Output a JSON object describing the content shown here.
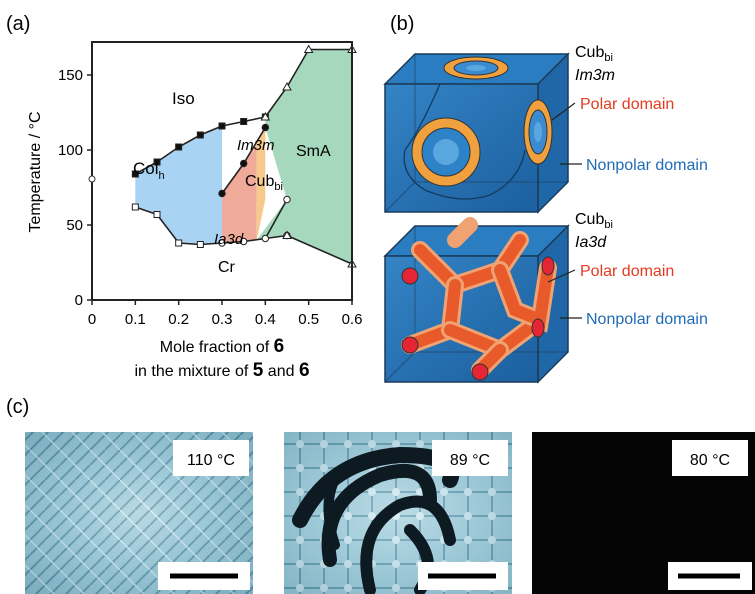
{
  "panel_a": {
    "label": "(a)",
    "ylabel": "Temperature / °C",
    "xlabel_line1_prefix": "Mole fraction of ",
    "xlabel_line1_bold": "6",
    "xlabel_line2_prefix": "in the mixture of ",
    "xlabel_line2_bold1": "5",
    "xlabel_line2_mid": " and ",
    "xlabel_line2_bold2": "6",
    "xticks": [
      "0",
      "0.1",
      "0.2",
      "0.3",
      "0.4",
      "0.5",
      "0.6"
    ],
    "yticks": [
      "0",
      "50",
      "100",
      "150"
    ],
    "phases": {
      "iso": "Iso",
      "col_main": "Col",
      "col_sub": "h",
      "im3m": "Im3m",
      "cub_main": "Cub",
      "cub_sub": "bi",
      "ia3d": "Ia3d",
      "sma": "SmA",
      "cr": "Cr"
    }
  },
  "chart_data": {
    "type": "scatter",
    "xlim": [
      0,
      0.6
    ],
    "ylim": [
      0,
      172
    ],
    "series": [
      {
        "x": [
          0.1,
          0.15,
          0.2,
          0.25,
          0.3,
          0.35,
          0.4
        ],
        "y": [
          84,
          92,
          102,
          110,
          116,
          119,
          122
        ]
      },
      {
        "x": [
          0.3,
          0.35,
          0.4
        ],
        "y": [
          71,
          91,
          115
        ]
      },
      {
        "x": [
          0.1,
          0.15,
          0.2,
          0.25,
          0.3,
          0.35,
          0.4,
          0.45
        ],
        "y": [
          62,
          57,
          38,
          37,
          38,
          39,
          41,
          43
        ]
      },
      {
        "x": [
          0.4,
          0.45,
          0.5,
          0.6
        ],
        "y": [
          122,
          142,
          167,
          167
        ]
      },
      {
        "x": [
          0.4,
          0.45
        ],
        "y": [
          41,
          67
        ]
      },
      {
        "x": [
          0.45,
          0.6
        ],
        "y": [
          43,
          24
        ]
      }
    ]
  },
  "panel_b": {
    "label": "(b)",
    "top": {
      "title_main": "Cub",
      "title_sub": "bi",
      "phase": "Im3m",
      "polar": "Polar domain",
      "nonpolar": "Nonpolar domain"
    },
    "bottom": {
      "title_main": "Cub",
      "title_sub": "bi",
      "phase": "Ia3d",
      "polar": "Polar domain",
      "nonpolar": "Nonpolar domain"
    },
    "colors": {
      "cube": "#2673b8",
      "polar": "#e84b24",
      "nonpolar_text": "#1f6bb5",
      "polar_text": "#e33b20"
    }
  },
  "panel_c": {
    "label": "(c)",
    "images": [
      {
        "temp": "110 °C"
      },
      {
        "temp": "89 °C"
      },
      {
        "temp": "80 °C"
      }
    ]
  }
}
